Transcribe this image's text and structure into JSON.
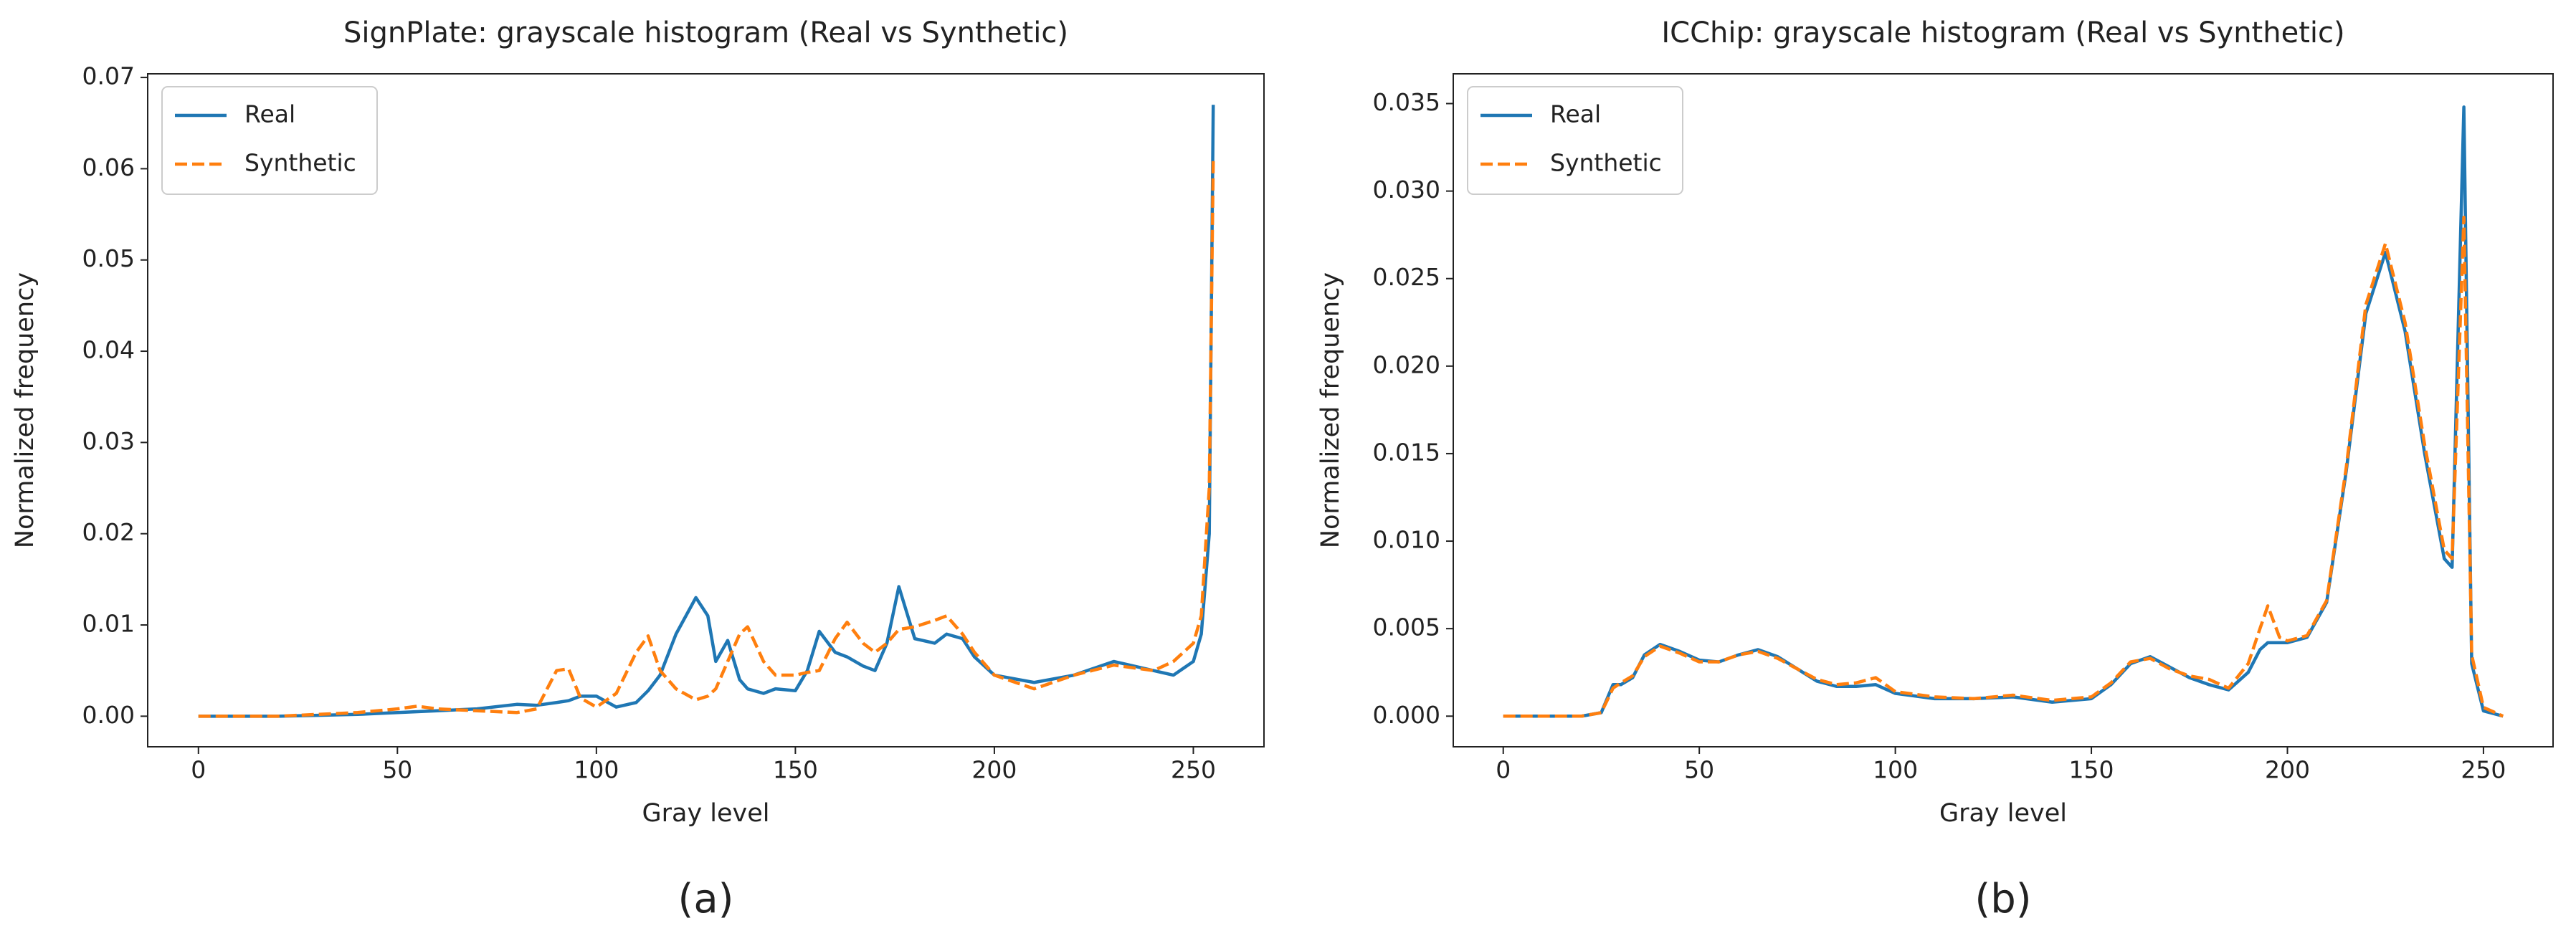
{
  "chart_data": [
    {
      "type": "line",
      "title": "SignPlate: grayscale histogram (Real vs Synthetic)",
      "xlabel": "Gray level",
      "ylabel": "Normalized frequency",
      "caption": "(a)",
      "legend": "upper left",
      "xlim": [
        -12.75,
        267.75
      ],
      "xticks": [
        0,
        50,
        100,
        150,
        200,
        250
      ],
      "ylim": [
        -0.00335,
        0.0704
      ],
      "yticks": [
        {
          "value": 0,
          "label": "0.00"
        },
        0.01,
        0.02,
        0.03,
        0.04,
        0.05,
        0.06,
        0.07
      ],
      "x": [
        0,
        10,
        20,
        30,
        40,
        50,
        55,
        60,
        70,
        80,
        85,
        90,
        93,
        96,
        100,
        105,
        110,
        113,
        116,
        120,
        125,
        128,
        130,
        133,
        136,
        138,
        142,
        145,
        150,
        153,
        156,
        160,
        163,
        167,
        170,
        173,
        176,
        180,
        185,
        188,
        192,
        195,
        200,
        210,
        220,
        230,
        240,
        245,
        250,
        252,
        254,
        255
      ],
      "series": [
        {
          "name": "Real",
          "color": "#1f77b4",
          "linestyle": "solid",
          "values": [
            0,
            0,
            0,
            0.0001,
            0.0002,
            0.0004,
            0.0005,
            0.0006,
            0.0008,
            0.0013,
            0.0012,
            0.0015,
            0.0017,
            0.0022,
            0.0022,
            0.001,
            0.0015,
            0.0028,
            0.0045,
            0.009,
            0.013,
            0.011,
            0.006,
            0.0083,
            0.004,
            0.003,
            0.0025,
            0.003,
            0.0028,
            0.005,
            0.0093,
            0.007,
            0.0065,
            0.0055,
            0.005,
            0.008,
            0.0142,
            0.0085,
            0.008,
            0.009,
            0.0085,
            0.0065,
            0.0045,
            0.0037,
            0.0045,
            0.006,
            0.005,
            0.0045,
            0.006,
            0.009,
            0.02,
            0.067
          ]
        },
        {
          "name": "Synthetic",
          "color": "#ff7f0e",
          "linestyle": "dashed",
          "values": [
            0,
            0,
            0,
            0.0002,
            0.0004,
            0.0008,
            0.0011,
            0.0008,
            0.0006,
            0.0004,
            0.0008,
            0.005,
            0.0052,
            0.002,
            0.001,
            0.0025,
            0.007,
            0.0088,
            0.005,
            0.003,
            0.0018,
            0.0022,
            0.003,
            0.006,
            0.009,
            0.0098,
            0.006,
            0.0045,
            0.0045,
            0.0048,
            0.005,
            0.0085,
            0.0103,
            0.008,
            0.007,
            0.008,
            0.0095,
            0.0098,
            0.0105,
            0.011,
            0.009,
            0.007,
            0.0045,
            0.003,
            0.0045,
            0.0056,
            0.005,
            0.006,
            0.008,
            0.011,
            0.025,
            0.061
          ]
        }
      ]
    },
    {
      "type": "line",
      "title": "ICChip: grayscale histogram (Real vs Synthetic)",
      "xlabel": "Gray level",
      "ylabel": "Normalized frequency",
      "caption": "(b)",
      "legend": "upper left",
      "xlim": [
        -12.75,
        267.75
      ],
      "xticks": [
        0,
        50,
        100,
        150,
        200,
        250
      ],
      "ylim": [
        -0.00175,
        0.0367
      ],
      "yticks": [
        {
          "value": 0,
          "label": "0.000"
        },
        0.005,
        {
          "value": 0.01,
          "label": "0.010"
        },
        0.015,
        {
          "value": 0.02,
          "label": "0.020"
        },
        0.025,
        {
          "value": 0.03,
          "label": "0.030"
        },
        0.035
      ],
      "x": [
        0,
        10,
        20,
        25,
        28,
        30,
        33,
        36,
        40,
        45,
        50,
        55,
        60,
        65,
        70,
        75,
        80,
        85,
        90,
        95,
        100,
        110,
        120,
        130,
        140,
        150,
        155,
        160,
        165,
        170,
        175,
        180,
        185,
        190,
        193,
        195,
        198,
        200,
        205,
        210,
        215,
        220,
        225,
        230,
        235,
        240,
        242,
        245,
        247,
        250,
        255
      ],
      "series": [
        {
          "name": "Real",
          "color": "#1f77b4",
          "linestyle": "solid",
          "values": [
            0,
            0,
            0,
            0.0002,
            0.0018,
            0.0018,
            0.0022,
            0.0035,
            0.0041,
            0.0037,
            0.0032,
            0.0031,
            0.0035,
            0.0038,
            0.0034,
            0.0027,
            0.002,
            0.0017,
            0.0017,
            0.0018,
            0.0013,
            0.001,
            0.001,
            0.0011,
            0.0008,
            0.001,
            0.0018,
            0.003,
            0.0034,
            0.0028,
            0.0022,
            0.0018,
            0.0015,
            0.0025,
            0.0038,
            0.0042,
            0.0042,
            0.0042,
            0.0045,
            0.0065,
            0.014,
            0.023,
            0.0265,
            0.022,
            0.015,
            0.009,
            0.0085,
            0.0348,
            0.003,
            0.0003,
            0
          ]
        },
        {
          "name": "Synthetic",
          "color": "#ff7f0e",
          "linestyle": "dashed",
          "values": [
            0,
            0,
            0,
            0.0002,
            0.0016,
            0.0019,
            0.0023,
            0.0034,
            0.004,
            0.0036,
            0.0031,
            0.0031,
            0.0035,
            0.0037,
            0.0033,
            0.0027,
            0.0021,
            0.0018,
            0.0019,
            0.0022,
            0.0014,
            0.0011,
            0.001,
            0.0012,
            0.0009,
            0.0011,
            0.0019,
            0.0031,
            0.0033,
            0.0027,
            0.0023,
            0.0021,
            0.0016,
            0.003,
            0.005,
            0.0063,
            0.0045,
            0.0043,
            0.0046,
            0.0066,
            0.0142,
            0.0235,
            0.027,
            0.0225,
            0.0155,
            0.0095,
            0.009,
            0.0285,
            0.0035,
            0.0005,
            0
          ]
        }
      ]
    }
  ]
}
